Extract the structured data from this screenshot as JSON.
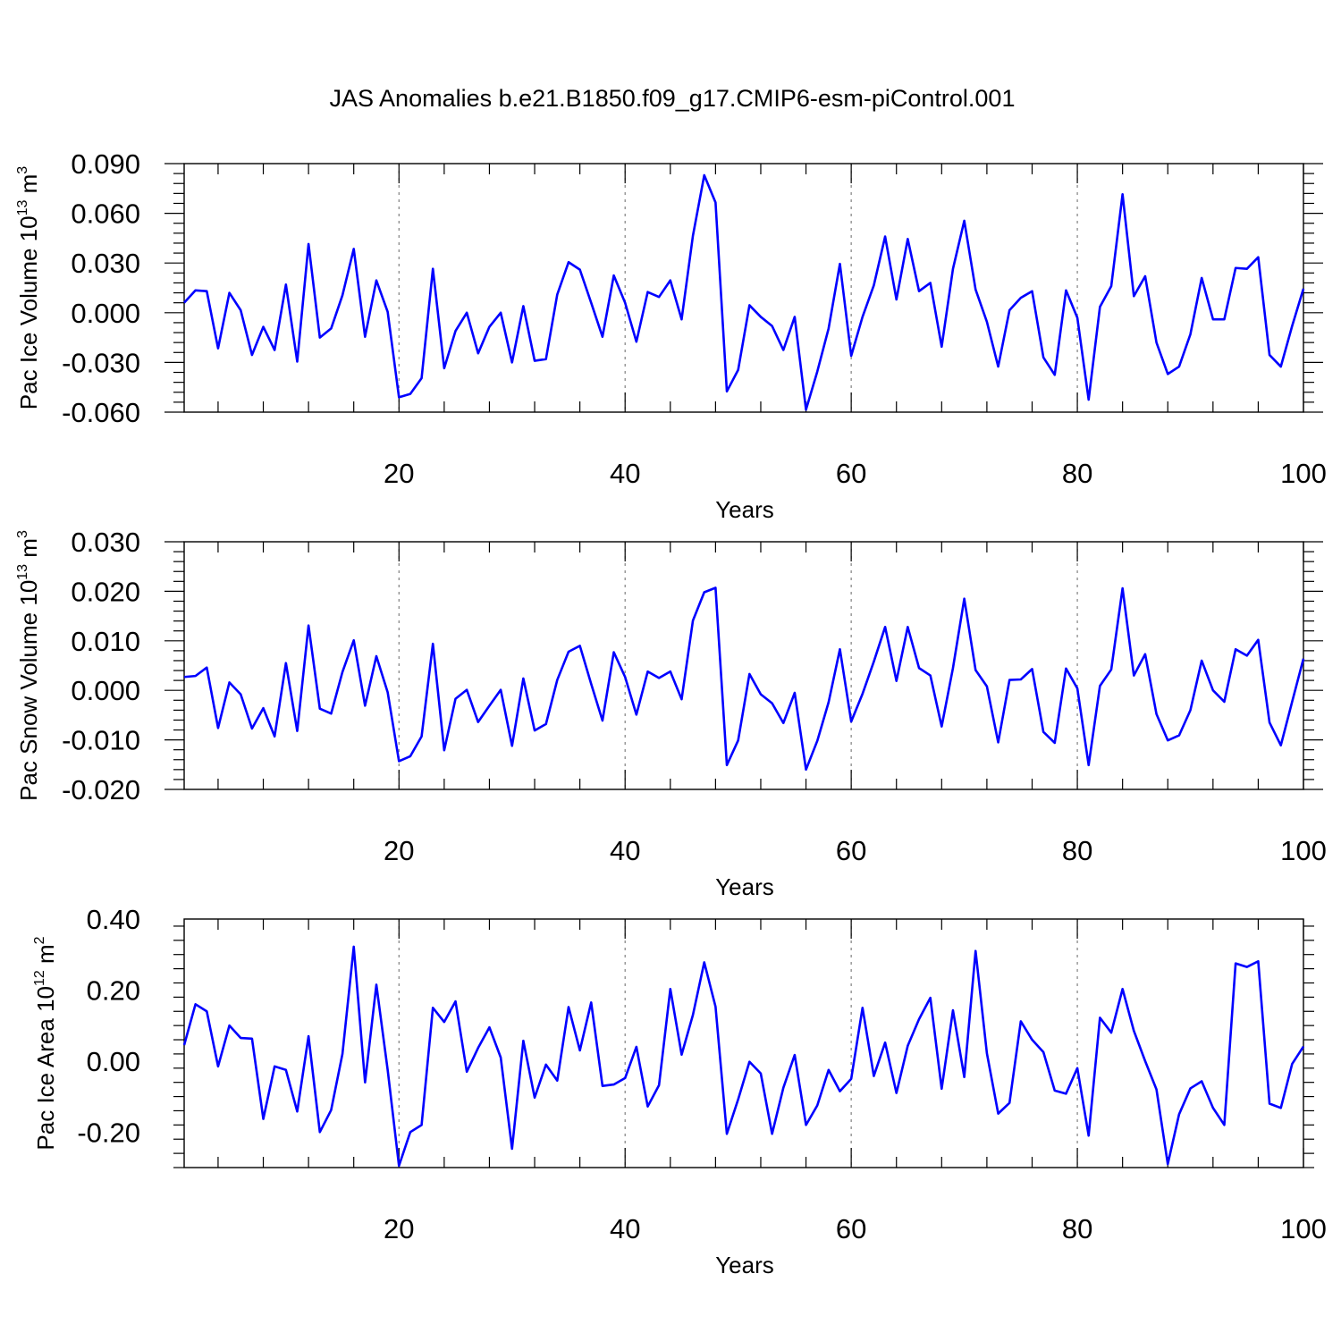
{
  "figure": {
    "title": "JAS Anomalies b.e21.B1850.f09_g17.CMIP6-esm-piControl.001",
    "line_color": "#0000ff",
    "gridline_color": "#808080"
  },
  "chart_data": [
    {
      "type": "line",
      "title": "JAS Anomalies b.e21.B1850.f09_g17.CMIP6-esm-piControl.001",
      "xlabel": "Years",
      "ylabel": {
        "prefix": "Pac Ice Volume 10",
        "exp": "13",
        "unit": " m",
        "unit_exp": "3"
      },
      "xlim": [
        1,
        100
      ],
      "ylim": [
        -0.06,
        0.09
      ],
      "xticks": [
        20,
        40,
        60,
        80,
        100
      ],
      "xtick_labels": [
        "20",
        "40",
        "60",
        "80",
        "100"
      ],
      "yticks": [
        -0.06,
        -0.03,
        0.0,
        0.03,
        0.06,
        0.09
      ],
      "ytick_labels": [
        "-0.060",
        "-0.030",
        "0.000",
        "0.030",
        "0.060",
        "0.090"
      ],
      "y_minor_step": 0.006,
      "x_minor_step": 4,
      "grid": "vertical dashed at major x ticks",
      "series": [
        {
          "values": [
            0.006,
            0.0135,
            0.013,
            -0.0215,
            0.012,
            0.0015,
            -0.0255,
            -0.0085,
            -0.0225,
            0.017,
            -0.0295,
            0.0415,
            -0.015,
            -0.0095,
            0.0105,
            0.0385,
            -0.0145,
            0.0195,
            0.0005,
            -0.051,
            -0.049,
            -0.0395,
            0.0265,
            -0.0335,
            -0.011,
            0.0,
            -0.0245,
            -0.0085,
            0.0,
            -0.03,
            0.004,
            -0.029,
            -0.028,
            0.011,
            0.0305,
            0.026,
            0.006,
            -0.0145,
            0.0225,
            0.006,
            -0.0175,
            0.0125,
            0.0095,
            0.0195,
            -0.004,
            0.0465,
            0.083,
            0.0665,
            -0.0475,
            -0.0345,
            0.0045,
            -0.0025,
            -0.008,
            -0.0225,
            -0.0025,
            -0.0585,
            -0.0355,
            -0.0095,
            0.0295,
            -0.026,
            -0.0025,
            0.0165,
            0.046,
            0.008,
            0.0445,
            0.013,
            0.018,
            -0.0205,
            0.0265,
            0.0555,
            0.014,
            -0.0055,
            -0.0325,
            0.0015,
            0.009,
            0.013,
            -0.027,
            -0.0375,
            0.0135,
            -0.003,
            -0.0525,
            0.0035,
            0.016,
            0.0715,
            0.01,
            0.022,
            -0.018,
            -0.037,
            -0.0325,
            -0.013,
            0.021,
            -0.004,
            -0.004,
            0.027,
            0.0265,
            0.0335,
            -0.0255,
            -0.0325,
            -0.008,
            0.0145
          ]
        }
      ]
    },
    {
      "type": "line",
      "xlabel": "Years",
      "ylabel": {
        "prefix": "Pac Snow Volume 10",
        "exp": "13",
        "unit": " m",
        "unit_exp": "3"
      },
      "xlim": [
        1,
        100
      ],
      "ylim": [
        -0.02,
        0.03
      ],
      "xticks": [
        20,
        40,
        60,
        80,
        100
      ],
      "xtick_labels": [
        "20",
        "40",
        "60",
        "80",
        "100"
      ],
      "yticks": [
        -0.02,
        -0.01,
        0.0,
        0.01,
        0.02,
        0.03
      ],
      "ytick_labels": [
        "-0.020",
        "-0.010",
        "0.000",
        "0.010",
        "0.020",
        "0.030"
      ],
      "y_minor_step": 0.002,
      "x_minor_step": 4,
      "grid": "vertical dashed at major x ticks",
      "series": [
        {
          "values": [
            0.0027,
            0.0029,
            0.0046,
            -0.0076,
            0.0016,
            -0.0008,
            -0.0077,
            -0.0036,
            -0.0093,
            0.0055,
            -0.0082,
            0.0131,
            -0.0037,
            -0.0047,
            0.0037,
            0.0101,
            -0.0031,
            0.0069,
            -0.0004,
            -0.0143,
            -0.0133,
            -0.0093,
            0.0094,
            -0.0121,
            -0.0017,
            0.0001,
            -0.0064,
            -0.0031,
            0.0001,
            -0.0112,
            0.0024,
            -0.0081,
            -0.0068,
            0.0021,
            0.0078,
            0.009,
            0.0013,
            -0.0061,
            0.0077,
            0.0027,
            -0.0049,
            0.0038,
            0.0025,
            0.0038,
            -0.0018,
            0.0141,
            0.0198,
            0.0207,
            -0.0151,
            -0.0101,
            0.0033,
            -0.0008,
            -0.0026,
            -0.0066,
            -0.0005,
            -0.016,
            -0.0102,
            -0.0024,
            0.0083,
            -0.0063,
            -0.0007,
            0.0058,
            0.0128,
            0.0019,
            0.0128,
            0.0045,
            0.003,
            -0.0073,
            0.0045,
            0.0185,
            0.0041,
            0.0008,
            -0.0105,
            0.0021,
            0.0022,
            0.0043,
            -0.0084,
            -0.0106,
            0.0044,
            0.0004,
            -0.0151,
            0.0009,
            0.0042,
            0.0206,
            0.003,
            0.0073,
            -0.0048,
            -0.0101,
            -0.0091,
            -0.004,
            0.006,
            0.0,
            -0.0023,
            0.0083,
            0.007,
            0.0102,
            -0.0065,
            -0.0111,
            -0.0023,
            0.0064
          ]
        }
      ]
    },
    {
      "type": "line",
      "xlabel": "Years",
      "ylabel": {
        "prefix": "Pac Ice Area 10",
        "exp": "12",
        "unit": " m",
        "unit_exp": "2"
      },
      "xlim": [
        1,
        100
      ],
      "ylim": [
        -0.3,
        0.4
      ],
      "xticks": [
        20,
        40,
        60,
        80,
        100
      ],
      "xtick_labels": [
        "20",
        "40",
        "60",
        "80",
        "100"
      ],
      "yticks": [
        -0.2,
        0.0,
        0.2,
        0.4
      ],
      "ytick_labels": [
        "-0.20",
        "0.00",
        "0.20",
        "0.40"
      ],
      "y_minor_step": 0.04,
      "x_minor_step": 4,
      "grid": "vertical dashed at major x ticks",
      "series": [
        {
          "values": [
            0.045,
            0.16,
            0.14,
            -0.015,
            0.1,
            0.065,
            0.063,
            -0.163,
            -0.015,
            -0.025,
            -0.142,
            0.07,
            -0.2,
            -0.138,
            0.02,
            0.322,
            -0.06,
            0.215,
            -0.025,
            -0.295,
            -0.2,
            -0.18,
            0.15,
            0.11,
            0.168,
            -0.03,
            0.037,
            0.095,
            0.01,
            -0.247,
            0.057,
            -0.103,
            -0.01,
            -0.055,
            0.152,
            0.03,
            0.165,
            -0.07,
            -0.066,
            -0.048,
            0.04,
            -0.128,
            -0.068,
            0.203,
            0.018,
            0.13,
            0.278,
            0.153,
            -0.205,
            -0.108,
            -0.002,
            -0.035,
            -0.205,
            -0.075,
            0.017,
            -0.18,
            -0.125,
            -0.025,
            -0.085,
            -0.05,
            0.15,
            -0.042,
            0.052,
            -0.09,
            0.043,
            0.118,
            0.178,
            -0.078,
            0.143,
            -0.045,
            0.31,
            0.022,
            -0.148,
            -0.118,
            0.112,
            0.06,
            0.025,
            -0.083,
            -0.092,
            -0.02,
            -0.21,
            0.122,
            0.08,
            0.203,
            0.085,
            0.0,
            -0.08,
            -0.29,
            -0.15,
            -0.077,
            -0.057,
            -0.132,
            -0.18,
            0.275,
            0.265,
            0.281,
            -0.12,
            -0.132,
            -0.008,
            0.041
          ]
        }
      ]
    }
  ]
}
